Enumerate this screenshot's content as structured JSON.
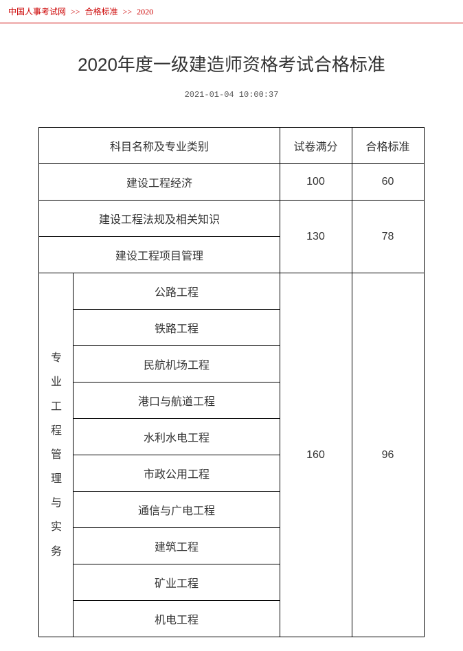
{
  "breadcrumb": {
    "home": "中国人事考试网",
    "section": "合格标准",
    "current": "2020"
  },
  "title": "2020年度一级建造师资格考试合格标准",
  "timestamp": "2021-01-04 10:00:37",
  "headers": {
    "subject": "科目名称及专业类别",
    "full": "试卷满分",
    "pass": "合格标准"
  },
  "row1": {
    "name": "建设工程经济",
    "full": "100",
    "pass": "60"
  },
  "row2": {
    "name": "建设工程法规及相关知识",
    "full": "130",
    "pass": "78"
  },
  "row3": {
    "name": "建设工程项目管理"
  },
  "group_label": "专业工程管理与实务",
  "group_full": "160",
  "group_pass": "96",
  "majors": {
    "m0": "公路工程",
    "m1": "铁路工程",
    "m2": "民航机场工程",
    "m3": "港口与航道工程",
    "m4": "水利水电工程",
    "m5": "市政公用工程",
    "m6": "通信与广电工程",
    "m7": "建筑工程",
    "m8": "矿业工程",
    "m9": "机电工程"
  }
}
